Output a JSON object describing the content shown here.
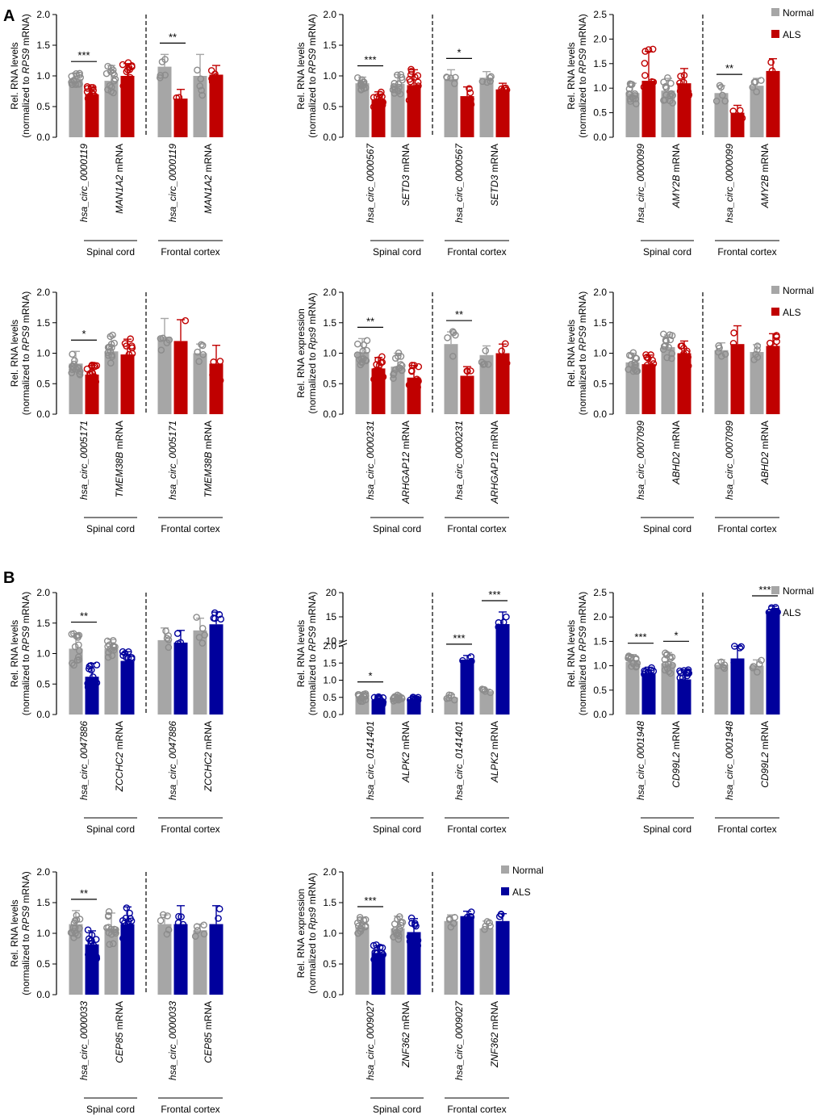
{
  "figure": {
    "panel_labels": [
      "A",
      "B"
    ],
    "legend": {
      "normal": "Normal",
      "als": "ALS"
    },
    "region_labels": {
      "spinal": "Spinal cord",
      "frontal": "Frontal cortex"
    },
    "mrna_word": "mRNA"
  },
  "colors": {
    "normal": "#a6a6a6",
    "normal_dot": "#8c8c8c",
    "als_a": "#c00000",
    "als_b": "#00009c",
    "axis": "#000000"
  },
  "chart_data": [
    {
      "id": "A1",
      "type": "bar",
      "panel": "A",
      "color": "als_a",
      "legend": false,
      "ylabel": [
        "Rel. RNA levels",
        "(normalized to |RPS9| mRNA)"
      ],
      "ylim": [
        0,
        2.0
      ],
      "yticks": [
        "0.0",
        "0.5",
        "1.0",
        "1.5",
        "2.0"
      ],
      "categories": [
        {
          "name": "hsa_circ_0000119",
          "mrna": false
        },
        {
          "name": "MAN1A2",
          "mrna": true
        },
        {
          "name": "hsa_circ_0000119",
          "mrna": false
        },
        {
          "name": "MAN1A2",
          "mrna": true
        }
      ],
      "series": [
        {
          "name": "Normal",
          "values": [
            0.95,
            0.92,
            1.15,
            1.0
          ],
          "errors": [
            0.1,
            0.25,
            0.2,
            0.35
          ]
        },
        {
          "name": "ALS",
          "values": [
            0.7,
            1.0,
            0.63,
            1.02
          ],
          "errors": [
            0.12,
            0.2,
            0.15,
            0.15
          ]
        }
      ],
      "significance": [
        {
          "category": 0,
          "label": "***"
        },
        {
          "category": 2,
          "label": "**"
        }
      ]
    },
    {
      "id": "A2",
      "type": "bar",
      "panel": "A",
      "color": "als_a",
      "legend": false,
      "ylabel": [
        "Rel. RNA levels",
        "(normalized to |RPS9| mRNA)"
      ],
      "ylim": [
        0,
        2.0
      ],
      "yticks": [
        "0.0",
        "0.5",
        "1.0",
        "1.5",
        "2.0"
      ],
      "categories": [
        {
          "name": "hsa_circ_0000567",
          "mrna": false
        },
        {
          "name": "SETD3",
          "mrna": true
        },
        {
          "name": "hsa_circ_0000567",
          "mrna": false
        },
        {
          "name": "SETD3",
          "mrna": true
        }
      ],
      "series": [
        {
          "name": "Normal",
          "values": [
            0.88,
            0.87,
            0.95,
            0.97
          ],
          "errors": [
            0.1,
            0.15,
            0.15,
            0.1
          ]
        },
        {
          "name": "ALS",
          "values": [
            0.62,
            0.85,
            0.67,
            0.78
          ],
          "errors": [
            0.12,
            0.25,
            0.15,
            0.1
          ]
        }
      ],
      "significance": [
        {
          "category": 0,
          "label": "***"
        },
        {
          "category": 2,
          "label": "*"
        }
      ]
    },
    {
      "id": "A3",
      "type": "bar",
      "panel": "A",
      "color": "als_a",
      "legend": true,
      "ylabel": [
        "Rel. RNA levels",
        "(normalized to |RPS9| mRNA)"
      ],
      "ylim": [
        0,
        2.5
      ],
      "yticks": [
        "0.0",
        "0.5",
        "1.0",
        "1.5",
        "2.0",
        "2.5"
      ],
      "categories": [
        {
          "name": "hsa_circ_0000099",
          "mrna": false
        },
        {
          "name": "AMY2B",
          "mrna": true
        },
        {
          "name": "hsa_circ_0000099",
          "mrna": false
        },
        {
          "name": "AMY2B",
          "mrna": true
        }
      ],
      "series": [
        {
          "name": "Normal",
          "values": [
            0.9,
            0.95,
            0.9,
            1.05
          ],
          "errors": [
            0.2,
            0.25,
            0.15,
            0.15
          ]
        },
        {
          "name": "ALS",
          "values": [
            1.15,
            1.1,
            0.5,
            1.35
          ],
          "errors": [
            0.6,
            0.3,
            0.15,
            0.25
          ]
        }
      ],
      "significance": [
        {
          "category": 2,
          "label": "**"
        }
      ]
    },
    {
      "id": "A4",
      "type": "bar",
      "panel": "A",
      "color": "als_a",
      "legend": false,
      "ylabel": [
        "Rel. RNA levels",
        "(normalized to |RPS9| mRNA)"
      ],
      "ylim": [
        0,
        2.0
      ],
      "yticks": [
        "0.0",
        "0.5",
        "1.0",
        "1.5",
        "2.0"
      ],
      "categories": [
        {
          "name": "hsa_circ_0005171",
          "mrna": false
        },
        {
          "name": "TMEM38B",
          "mrna": true
        },
        {
          "name": "hsa_circ_0005171",
          "mrna": false
        },
        {
          "name": "TMEM38B",
          "mrna": true
        }
      ],
      "series": [
        {
          "name": "Normal",
          "values": [
            0.83,
            1.03,
            1.27,
            1.0
          ],
          "errors": [
            0.2,
            0.25,
            0.3,
            0.15
          ]
        },
        {
          "name": "ALS",
          "values": [
            0.65,
            0.98,
            1.2,
            0.83
          ],
          "errors": [
            0.15,
            0.25,
            0.35,
            0.3
          ]
        }
      ],
      "significance": [
        {
          "category": 0,
          "label": "*"
        }
      ]
    },
    {
      "id": "A5",
      "type": "bar",
      "panel": "A",
      "color": "als_a",
      "legend": false,
      "ylabel": [
        "Rel. RNA expression",
        "(normalized to |Rps9| mRNA)"
      ],
      "ylim": [
        0,
        2.0
      ],
      "yticks": [
        "0.0",
        "0.5",
        "1.0",
        "1.5",
        "2.0"
      ],
      "categories": [
        {
          "name": "hsa_circ_0000231",
          "mrna": false
        },
        {
          "name": "ARHGAP12",
          "mrna": true
        },
        {
          "name": "hsa_circ_0000231",
          "mrna": false
        },
        {
          "name": "ARHGAP12",
          "mrna": true
        }
      ],
      "series": [
        {
          "name": "Normal",
          "values": [
            1.02,
            0.78,
            1.15,
            0.97
          ],
          "errors": [
            0.22,
            0.22,
            0.2,
            0.15
          ]
        },
        {
          "name": "ALS",
          "values": [
            0.75,
            0.6,
            0.63,
            1.0
          ],
          "errors": [
            0.18,
            0.2,
            0.15,
            0.15
          ]
        }
      ],
      "significance": [
        {
          "category": 0,
          "label": "**"
        },
        {
          "category": 2,
          "label": "**"
        }
      ]
    },
    {
      "id": "A6",
      "type": "bar",
      "panel": "A",
      "color": "als_a",
      "legend": true,
      "ylabel": [
        "Rel. RNA levels",
        "(normalized to |RPS9| mRNA)"
      ],
      "ylim": [
        0,
        2.0
      ],
      "yticks": [
        "0.0",
        "0.5",
        "1.0",
        "1.5",
        "2.0"
      ],
      "categories": [
        {
          "name": "hsa_circ_0007099",
          "mrna": false
        },
        {
          "name": "ABHD2",
          "mrna": true
        },
        {
          "name": "hsa_circ_0007099",
          "mrna": false
        },
        {
          "name": "ABHD2",
          "mrna": true
        }
      ],
      "series": [
        {
          "name": "Normal",
          "values": [
            0.85,
            1.1,
            1.05,
            1.02
          ],
          "errors": [
            0.15,
            0.2,
            0.12,
            0.12
          ]
        },
        {
          "name": "ALS",
          "values": [
            0.82,
            1.0,
            1.15,
            1.12
          ],
          "errors": [
            0.15,
            0.2,
            0.3,
            0.2
          ]
        }
      ],
      "significance": []
    },
    {
      "id": "B1",
      "type": "bar",
      "panel": "B",
      "color": "als_b",
      "legend": false,
      "ylabel": [
        "Rel. RNA levels",
        "(normalized to |RPS9| mRNA)"
      ],
      "ylim": [
        0,
        2.0
      ],
      "yticks": [
        "0.0",
        "0.5",
        "1.0",
        "1.5",
        "2.0"
      ],
      "categories": [
        {
          "name": "hsa_circ_0047886",
          "mrna": false
        },
        {
          "name": "ZCCHC2",
          "mrna": true
        },
        {
          "name": "hsa_circ_0047886",
          "mrna": false
        },
        {
          "name": "ZCCHC2",
          "mrna": true
        }
      ],
      "series": [
        {
          "name": "Normal",
          "values": [
            1.08,
            1.08,
            1.22,
            1.38
          ],
          "errors": [
            0.25,
            0.15,
            0.2,
            0.2
          ]
        },
        {
          "name": "ALS",
          "values": [
            0.62,
            0.88,
            1.18,
            1.48
          ],
          "errors": [
            0.22,
            0.15,
            0.2,
            0.2
          ]
        }
      ],
      "significance": [
        {
          "category": 0,
          "label": "**"
        }
      ]
    },
    {
      "id": "B2",
      "type": "bar",
      "panel": "B",
      "color": "als_b",
      "legend": false,
      "broken": true,
      "ylabel": [
        "Rel. RNA levels",
        "(normalized to |RPS9| mRNA)"
      ],
      "ylim": [
        0,
        20
      ],
      "yticks": [
        "0.0",
        "0.5",
        "1.0",
        "1.5",
        "2.0",
        "10",
        "15",
        "20"
      ],
      "categories": [
        {
          "name": "hsa_circ_0141401",
          "mrna": false
        },
        {
          "name": "ALPK2",
          "mrna": true
        },
        {
          "name": "hsa_circ_0141401",
          "mrna": false
        },
        {
          "name": "ALPK2",
          "mrna": true
        }
      ],
      "series": [
        {
          "name": "Normal",
          "values": [
            0.5,
            0.48,
            0.5,
            0.68
          ],
          "errors": [
            0.12,
            0.1,
            0.08,
            0.06
          ]
        },
        {
          "name": "ALS",
          "values": [
            0.42,
            0.45,
            1.6,
            13.5
          ],
          "errors": [
            0.12,
            0.08,
            0.12,
            2.5
          ]
        }
      ],
      "significance": [
        {
          "category": 0,
          "label": "*"
        },
        {
          "category": 2,
          "label": "***"
        },
        {
          "category": 3,
          "label": "***"
        }
      ]
    },
    {
      "id": "B3",
      "type": "bar",
      "panel": "B",
      "color": "als_b",
      "legend": true,
      "ylabel": [
        "Rel. RNA levels",
        "(normalized to |RPS9| mRNA)"
      ],
      "ylim": [
        0,
        2.5
      ],
      "yticks": [
        "0.0",
        "0.5",
        "1.0",
        "1.5",
        "2.0",
        "2.5"
      ],
      "categories": [
        {
          "name": "hsa_circ_0001948",
          "mrna": false
        },
        {
          "name": "CD99L2",
          "mrna": true
        },
        {
          "name": "hsa_circ_0001948",
          "mrna": false
        },
        {
          "name": "CD99L2",
          "mrna": true
        }
      ],
      "series": [
        {
          "name": "Normal",
          "values": [
            1.08,
            1.05,
            1.02,
            1.0
          ],
          "errors": [
            0.15,
            0.22,
            0.1,
            0.12
          ]
        },
        {
          "name": "ALS",
          "values": [
            0.85,
            0.72,
            1.15,
            2.12
          ],
          "errors": [
            0.12,
            0.2,
            0.25,
            0.1
          ]
        }
      ],
      "significance": [
        {
          "category": 0,
          "label": "***"
        },
        {
          "category": 1,
          "label": "*"
        },
        {
          "category": 3,
          "label": "***"
        }
      ]
    },
    {
      "id": "B4",
      "type": "bar",
      "panel": "B",
      "color": "als_b",
      "legend": false,
      "ylabel": [
        "Rel. RNA levels",
        "(normalized to |RPS9| mRNA)"
      ],
      "ylim": [
        0,
        2.0
      ],
      "yticks": [
        "0.0",
        "0.5",
        "1.0",
        "1.5",
        "2.0"
      ],
      "categories": [
        {
          "name": "hsa_circ_0000033",
          "mrna": false
        },
        {
          "name": "CEP85",
          "mrna": true
        },
        {
          "name": "hsa_circ_0000033",
          "mrna": false
        },
        {
          "name": "CEP85",
          "mrna": true
        }
      ],
      "series": [
        {
          "name": "Normal",
          "values": [
            1.15,
            1.08,
            1.15,
            1.05
          ],
          "errors": [
            0.22,
            0.25,
            0.15,
            0.1
          ]
        },
        {
          "name": "ALS",
          "values": [
            0.82,
            1.15,
            1.15,
            1.15
          ],
          "errors": [
            0.22,
            0.28,
            0.3,
            0.3
          ]
        }
      ],
      "significance": [
        {
          "category": 0,
          "label": "**"
        }
      ]
    },
    {
      "id": "B5",
      "type": "bar",
      "panel": "B",
      "color": "als_b",
      "legend": true,
      "ylabel": [
        "Rel. RNA expression",
        "(normalized to |Rps9| mRNA)"
      ],
      "ylim": [
        0,
        2.0
      ],
      "yticks": [
        "0.0",
        "0.5",
        "1.0",
        "1.5",
        "2.0"
      ],
      "categories": [
        {
          "name": "hsa_circ_0009027",
          "mrna": false
        },
        {
          "name": "ZNF362",
          "mrna": true
        },
        {
          "name": "hsa_circ_0009027",
          "mrna": false
        },
        {
          "name": "ZNF362",
          "mrna": true
        }
      ],
      "series": [
        {
          "name": "Normal",
          "values": [
            1.1,
            1.08,
            1.2,
            1.08
          ],
          "errors": [
            0.15,
            0.2,
            0.1,
            0.12
          ]
        },
        {
          "name": "ALS",
          "values": [
            0.68,
            1.02,
            1.28,
            1.2
          ],
          "errors": [
            0.12,
            0.22,
            0.08,
            0.12
          ]
        }
      ],
      "significance": [
        {
          "category": 0,
          "label": "***"
        }
      ]
    }
  ]
}
